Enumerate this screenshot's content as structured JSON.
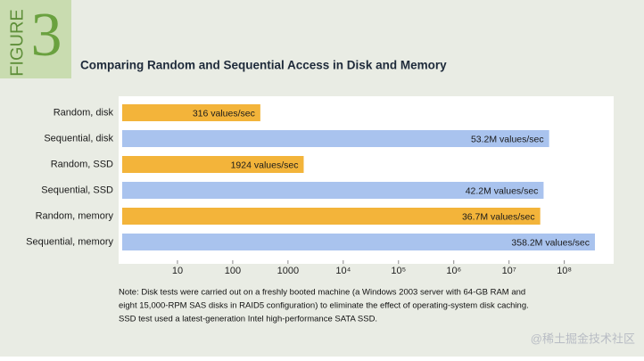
{
  "chart_data": {
    "type": "bar",
    "orientation": "horizontal",
    "figure_label": "FIGURE",
    "figure_number": "3",
    "title": "Comparing Random and Sequential Access in Disk and Memory",
    "categories": [
      "Random, disk",
      "Sequential, disk",
      "Random, SSD",
      "Sequential, SSD",
      "Random, memory",
      "Sequential, memory"
    ],
    "values": [
      316,
      53200000,
      1924,
      42200000,
      36700000,
      358200000
    ],
    "value_labels": [
      "316 values/sec",
      "53.2M values/sec",
      "1924 values/sec",
      "42.2M values/sec",
      "36.7M values/sec",
      "358.2M values/sec"
    ],
    "colors": [
      "#f3b43a",
      "#a9c3ee",
      "#f3b43a",
      "#a9c3ee",
      "#f3b43a",
      "#a9c3ee"
    ],
    "log_scale": true,
    "xlim": [
      1,
      700000000
    ],
    "xticks": [
      10,
      100,
      1000,
      {
        "value": 10000,
        "label": "10⁴"
      },
      {
        "value": 100000,
        "label": "10⁵"
      },
      {
        "value": 1000000,
        "label": "10⁶"
      },
      {
        "value": 10000000,
        "label": "10⁷"
      },
      {
        "value": 100000000,
        "label": "10⁸"
      }
    ],
    "note": [
      "Note: Disk tests were carried out on a freshly booted machine (a Windows 2003 server with 64-GB RAM and",
      "eight 15,000-RPM SAS disks in RAID5 configuration) to eliminate the effect of operating-system disk caching.",
      "SSD test used a latest-generation Intel high-performance SATA SSD."
    ],
    "watermark": "@稀土掘金技术社区"
  }
}
